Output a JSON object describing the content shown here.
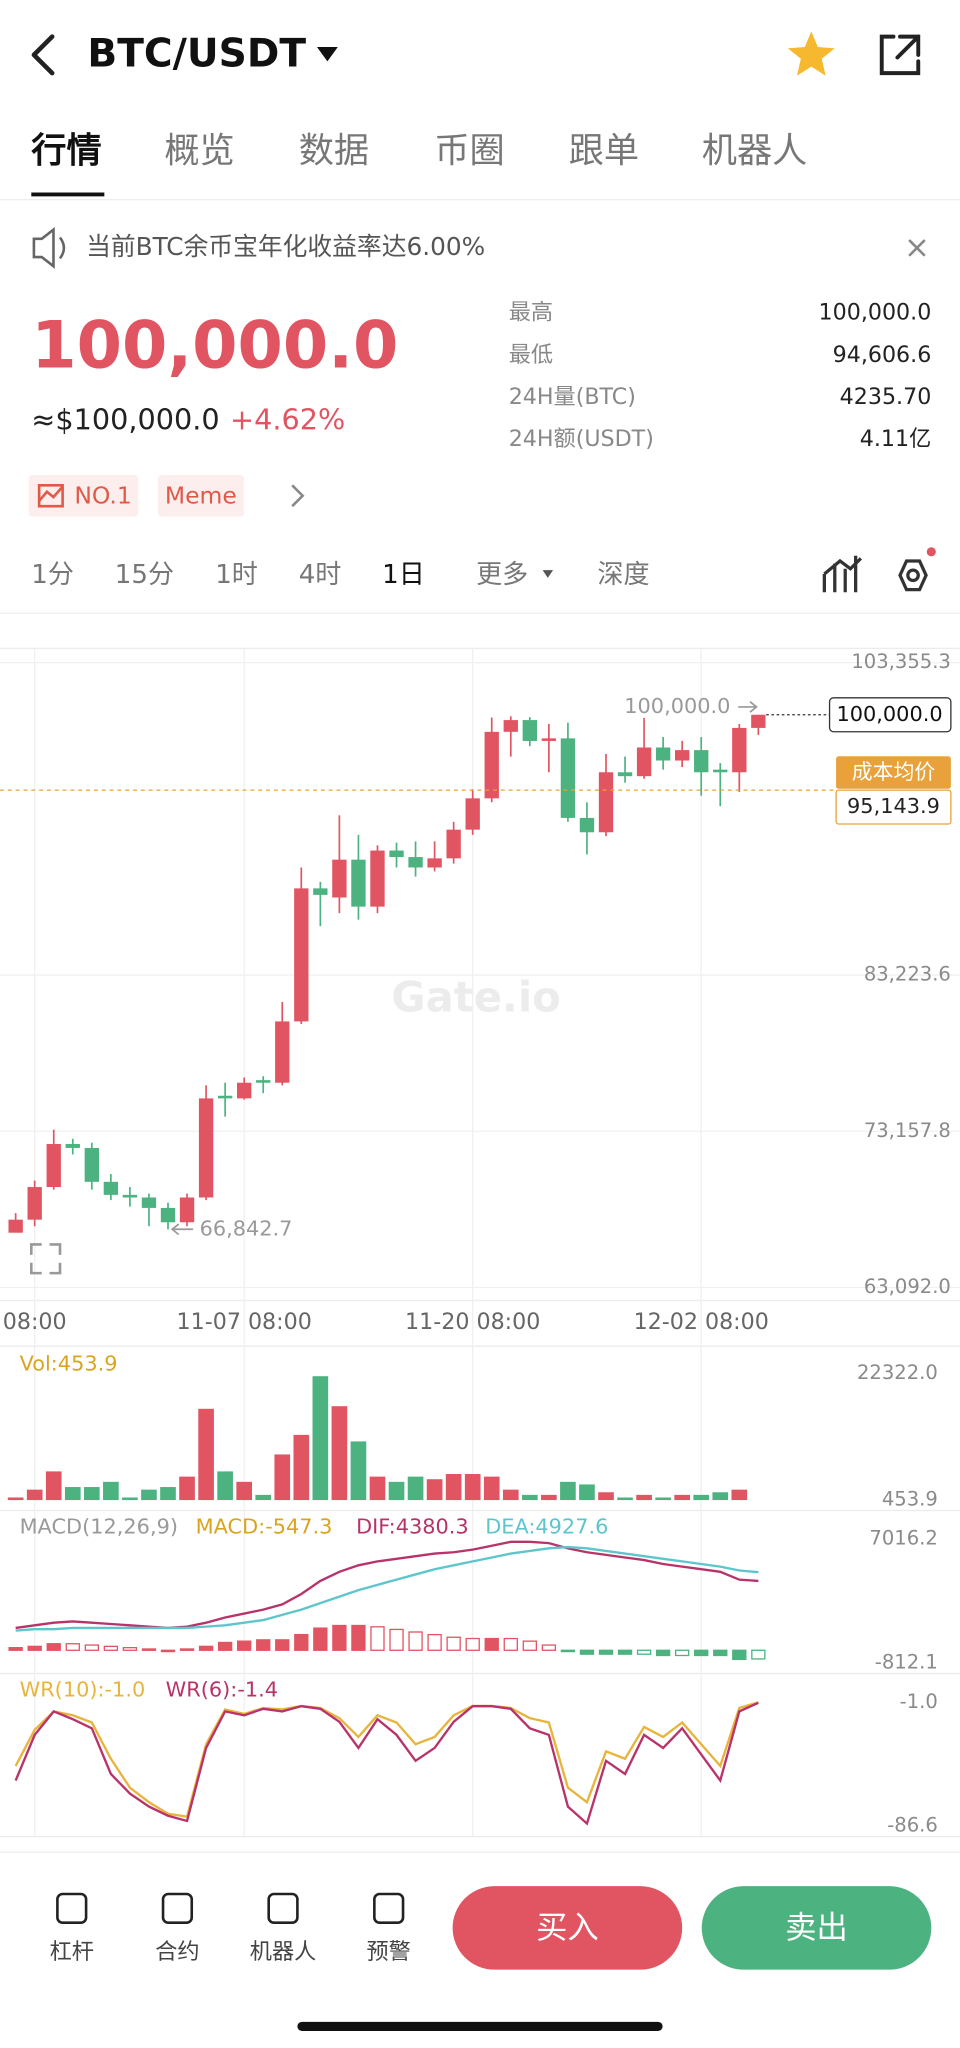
{
  "header": {
    "pair": "BTC/USDT"
  },
  "tabs": [
    "行情",
    "概览",
    "数据",
    "币圈",
    "跟单",
    "机器人"
  ],
  "notice": "当前BTC余币宝年化收益率达6.00%",
  "price": {
    "last": "100,000.0",
    "usd": "≈$100,000.0",
    "change": "+4.62%"
  },
  "stats": [
    {
      "label": "最高",
      "value": "100,000.0"
    },
    {
      "label": "最低",
      "value": "94,606.6"
    },
    {
      "label": "24H量(BTC)",
      "value": "4235.70"
    },
    {
      "label": "24H额(USDT)",
      "value": "4.11亿"
    }
  ],
  "badges": [
    "NO.1",
    "Meme"
  ],
  "intervals": [
    "1分",
    "15分",
    "1时",
    "4时",
    "1日",
    "更多",
    "深度"
  ],
  "chart_data": [
    {
      "type": "candlestick",
      "watermark": "Gate.io",
      "categories": [
        null,
        "08:00",
        null,
        null,
        null,
        null,
        null,
        null,
        null,
        null,
        null,
        null,
        "11-07 08:00",
        null,
        null,
        null,
        null,
        null,
        null,
        null,
        null,
        null,
        null,
        null,
        "11-20 08:00",
        null,
        null,
        null,
        null,
        null,
        null,
        null,
        null,
        null,
        null,
        null,
        "12-02 08:00",
        null,
        null,
        null
      ],
      "open": [
        66622,
        67462,
        69563,
        72337,
        72085,
        69900,
        69059,
        68891,
        68219,
        67294,
        68891,
        75447,
        75279,
        76455,
        76287,
        80238,
        88812,
        88224,
        90662,
        87636,
        91250,
        90830,
        90157,
        90746,
        92595,
        94613,
        98900,
        99657,
        98312,
        98480,
        93352,
        92427,
        96294,
        96042,
        97891,
        97051,
        97723,
        96462,
        96294,
        99152
      ],
      "high": [
        67883,
        69984,
        73262,
        72673,
        72421,
        70404,
        69563,
        69143,
        68555,
        69143,
        76119,
        76287,
        76624,
        76708,
        81499,
        90157,
        89233,
        93520,
        92259,
        91587,
        91755,
        91839,
        91839,
        93100,
        95201,
        99825,
        99900,
        99850,
        99404,
        99488,
        94361,
        97471,
        97303,
        99800,
        98564,
        98312,
        98564,
        96883,
        99404,
        100000.0
      ],
      "low": [
        67000,
        67042,
        69395,
        71665,
        69395,
        68723,
        68303,
        67042,
        66842.7,
        67042,
        68723,
        74102,
        75200,
        75615,
        76119,
        80070,
        86375,
        87215,
        86795,
        87215,
        90157,
        89569,
        89905,
        90410,
        92259,
        94361,
        97303,
        97975,
        96294,
        93100,
        90998,
        92175,
        95622,
        95874,
        96462,
        96630,
        94781,
        94108,
        95033,
        98700
      ],
      "close": [
        67462,
        69563,
        72337,
        72085,
        69900,
        69059,
        68891,
        68219,
        67294,
        68891,
        75279,
        75279,
        76287,
        76287,
        80238,
        88812,
        88392,
        90662,
        87636,
        91250,
        90830,
        90157,
        90746,
        92595,
        94613,
        98900,
        99657,
        98312,
        98480,
        93352,
        92427,
        96294,
        96042,
        97891,
        97051,
        97723,
        96294,
        96294,
        99152,
        100000.0
      ],
      "up_color": "#e15563",
      "down_color": "#4cb380",
      "ylim": [
        63092.0,
        103355.3
      ],
      "yticks": [
        {
          "value": 103355.3,
          "label": "103,355.3"
        },
        {
          "value": 83223.6,
          "label": "83,223.6"
        },
        {
          "value": 73157.8,
          "label": "73,157.8"
        },
        {
          "value": 63092.0,
          "label": "63,092.0"
        }
      ],
      "high_label": {
        "value": 100000.0,
        "label": "100,000.0"
      },
      "low_label": {
        "value": 66842.7,
        "label": "66,842.7"
      },
      "last_price": {
        "value": 100000.0,
        "label": "100,000.0"
      },
      "cost_line": {
        "name": "成本均价",
        "value": 95143.9,
        "label": "95,143.9",
        "color": "#e9a23b"
      }
    },
    {
      "type": "bar",
      "title": "Vol:453.9",
      "title_color": "#d9a520",
      "values": [
        904.7,
        2257.1,
        5412.7,
        2707.9,
        2707.9,
        3609.5,
        904.7,
        2257.1,
        2707.9,
        4511.1,
        16231.9,
        5412.7,
        3609.5,
        1355.5,
        8342.9,
        11724.0,
        21866.9,
        16682.7,
        10597.0,
        4511.1,
        3609.5,
        4511.1,
        4060.3,
        4961.9,
        4961.9,
        4511.1,
        2257.1,
        1355.5,
        1355.5,
        3609.5,
        3158.7,
        1806.3,
        904.7,
        1355.5,
        904.7,
        1355.5,
        1355.5,
        1806.3,
        2257.1,
        453.9
      ],
      "ylim": [
        453.9,
        22322.0
      ],
      "yticks": [
        {
          "value": 22322.0,
          "label": "22322.0"
        },
        453.9
      ]
    },
    {
      "type": "macd",
      "title": "MACD(12,26,9)",
      "series": [
        {
          "name": "MACD:-547.3",
          "color": "#d9a520",
          "values": [
            165,
            248,
            413,
            412,
            330,
            247,
            165,
            82,
            0,
            82,
            248,
            494,
            576,
            659,
            659,
            990,
            1401,
            1565,
            1566,
            1483,
            1318,
            1154,
            989,
            824,
            742,
            742,
            741,
            577,
            330,
            -83,
            -247,
            -247,
            -248,
            -247,
            -330,
            -329,
            -329,
            -330,
            -577,
            -547.3
          ]
        },
        {
          "name": "DIF:4380.3",
          "color": "#b8336a",
          "values": [
            1413,
            1578,
            1743,
            1825,
            1743,
            1660,
            1578,
            1495,
            1413,
            1495,
            1743,
            2072,
            2319,
            2566,
            2896,
            3556,
            4379,
            4956,
            5368,
            5615,
            5780,
            5945,
            6110,
            6192,
            6357,
            6604,
            6851,
            6851,
            6769,
            6439,
            6192,
            6027,
            5862,
            5698,
            5450,
            5286,
            5121,
            4956,
            4462,
            4380.3
          ]
        },
        {
          "name": "DEA:4927.6",
          "color": "#5cc6cc",
          "values": [
            1248,
            1330,
            1330,
            1413,
            1413,
            1413,
            1413,
            1413,
            1413,
            1413,
            1495,
            1578,
            1743,
            1907,
            2237,
            2566,
            2978,
            3391,
            3802,
            4132,
            4462,
            4791,
            5121,
            5368,
            5615,
            5862,
            6110,
            6274,
            6439,
            6522,
            6439,
            6274,
            6110,
            5945,
            5780,
            5615,
            5450,
            5286,
            5039,
            4927.6
          ]
        }
      ],
      "ylim": [
        -812.1,
        7016.2
      ],
      "yticks": [
        7016.2,
        -812.1
      ]
    },
    {
      "type": "line",
      "series": [
        {
          "name": "WR(10):-1.0",
          "color": "#e8b53c",
          "values": [
            -45.0,
            -20.0,
            -7.3,
            -10.0,
            -15.0,
            -40.0,
            -60.0,
            -70.0,
            -78.0,
            -80.0,
            -30.0,
            -6.0,
            -9.0,
            -5.0,
            -6.0,
            -3.5,
            -5.0,
            -12.0,
            -25.0,
            -10.0,
            -15.0,
            -30.0,
            -25.0,
            -10.0,
            -3.5,
            -3.5,
            -5.0,
            -12.0,
            -15.0,
            -60.0,
            -70.0,
            -35.0,
            -40.0,
            -18.0,
            -25.0,
            -15.0,
            -30.0,
            -45.0,
            -5.0,
            -1.0
          ]
        },
        {
          "name": "WR(6):-1.4",
          "color": "#b8336a",
          "values": [
            -55.1,
            -23.5,
            -7.3,
            -12.7,
            -19.0,
            -50.6,
            -64.1,
            -73.1,
            -79.4,
            -83.0,
            -32.5,
            -7.3,
            -10.0,
            -5.5,
            -7.3,
            -3.7,
            -5.5,
            -14.5,
            -32.5,
            -12.7,
            -23.5,
            -41.5,
            -32.5,
            -14.5,
            -3.7,
            -3.7,
            -5.5,
            -19.0,
            -23.5,
            -73.1,
            -84.8,
            -41.5,
            -50.6,
            -23.5,
            -32.5,
            -19.0,
            -37.0,
            -55.1,
            -7.3,
            -1.4
          ]
        }
      ],
      "ylim": [
        -86.6,
        -1.0
      ],
      "yticks": [
        {
          "value": -1.0,
          "label": "-1.0"
        },
        -86.6
      ]
    }
  ],
  "toolbar": [
    "杠杆",
    "合约",
    "机器人",
    "预警"
  ],
  "actions": {
    "buy": "买入",
    "sell": "卖出"
  }
}
